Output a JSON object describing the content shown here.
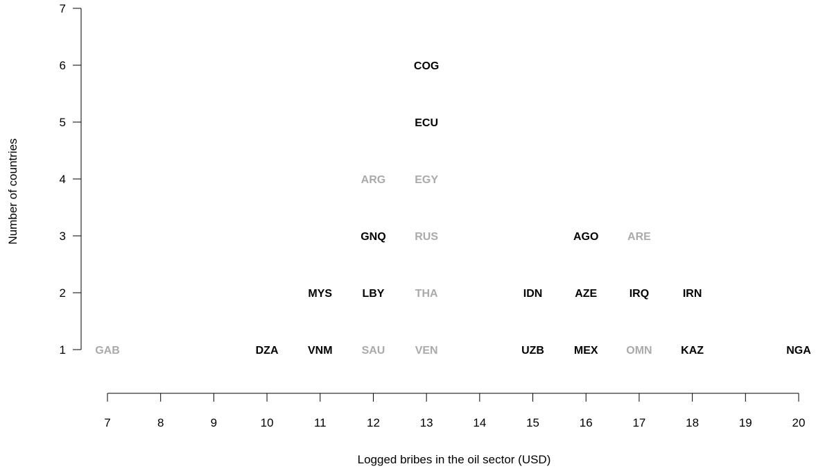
{
  "chart_data": {
    "type": "scatter",
    "xlabel": "Logged bribes in the oil sector (USD)",
    "ylabel": "Number of countries",
    "xlim": [
      7,
      20
    ],
    "ylim": [
      1,
      7
    ],
    "x_ticks": [
      7,
      8,
      9,
      10,
      11,
      12,
      13,
      14,
      15,
      16,
      17,
      18,
      19,
      20
    ],
    "y_ticks": [
      1,
      2,
      3,
      4,
      5,
      6,
      7
    ],
    "grid": false,
    "colors": {
      "dark": "#000000",
      "light": "#aaaaaa"
    },
    "points": [
      {
        "label": "GAB",
        "x": 7,
        "y": 1,
        "shade": "light"
      },
      {
        "label": "DZA",
        "x": 10,
        "y": 1,
        "shade": "dark"
      },
      {
        "label": "VNM",
        "x": 11,
        "y": 1,
        "shade": "dark"
      },
      {
        "label": "MYS",
        "x": 11,
        "y": 2,
        "shade": "dark"
      },
      {
        "label": "SAU",
        "x": 12,
        "y": 1,
        "shade": "light"
      },
      {
        "label": "LBY",
        "x": 12,
        "y": 2,
        "shade": "dark"
      },
      {
        "label": "GNQ",
        "x": 12,
        "y": 3,
        "shade": "dark"
      },
      {
        "label": "ARG",
        "x": 12,
        "y": 4,
        "shade": "light"
      },
      {
        "label": "VEN",
        "x": 13,
        "y": 1,
        "shade": "light"
      },
      {
        "label": "THA",
        "x": 13,
        "y": 2,
        "shade": "light"
      },
      {
        "label": "RUS",
        "x": 13,
        "y": 3,
        "shade": "light"
      },
      {
        "label": "EGY",
        "x": 13,
        "y": 4,
        "shade": "light"
      },
      {
        "label": "ECU",
        "x": 13,
        "y": 5,
        "shade": "dark"
      },
      {
        "label": "COG",
        "x": 13,
        "y": 6,
        "shade": "dark"
      },
      {
        "label": "UZB",
        "x": 15,
        "y": 1,
        "shade": "dark"
      },
      {
        "label": "IDN",
        "x": 15,
        "y": 2,
        "shade": "dark"
      },
      {
        "label": "MEX",
        "x": 16,
        "y": 1,
        "shade": "dark"
      },
      {
        "label": "AZE",
        "x": 16,
        "y": 2,
        "shade": "dark"
      },
      {
        "label": "AGO",
        "x": 16,
        "y": 3,
        "shade": "dark"
      },
      {
        "label": "OMN",
        "x": 17,
        "y": 1,
        "shade": "light"
      },
      {
        "label": "IRQ",
        "x": 17,
        "y": 2,
        "shade": "dark"
      },
      {
        "label": "ARE",
        "x": 17,
        "y": 3,
        "shade": "light"
      },
      {
        "label": "KAZ",
        "x": 18,
        "y": 1,
        "shade": "dark"
      },
      {
        "label": "IRN",
        "x": 18,
        "y": 2,
        "shade": "dark"
      },
      {
        "label": "NGA",
        "x": 20,
        "y": 1,
        "shade": "dark"
      }
    ]
  }
}
